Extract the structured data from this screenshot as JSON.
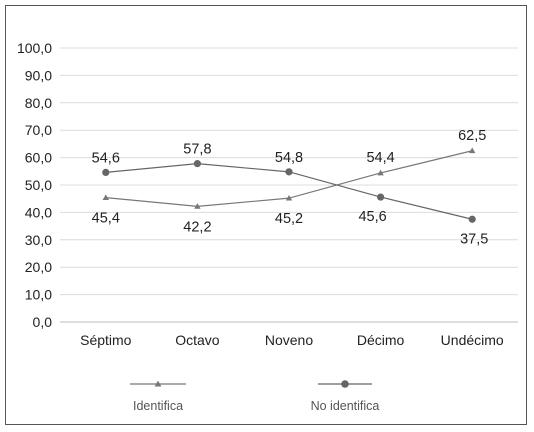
{
  "chart_data": {
    "type": "line",
    "categories": [
      "Séptimo",
      "Octavo",
      "Noveno",
      "Décimo",
      "Undécimo"
    ],
    "ylim": [
      0,
      100
    ],
    "yticks": [
      "0,0",
      "10,0",
      "20,0",
      "30,0",
      "40,0",
      "50,0",
      "60,0",
      "70,0",
      "80,0",
      "90,0",
      "100,0"
    ],
    "grid": true,
    "legend_position": "bottom",
    "series": [
      {
        "name": "Identifica",
        "values": [
          45.4,
          42.2,
          45.2,
          54.4,
          62.5
        ],
        "labels": [
          "45,4",
          "42,2",
          "45,2",
          "54,4",
          "62,5"
        ],
        "marker": "triangle",
        "color": "#777777"
      },
      {
        "name": "No identifica",
        "values": [
          54.6,
          57.8,
          54.8,
          45.6,
          37.5
        ],
        "labels": [
          "54,6",
          "57,8",
          "54,8",
          "45,6",
          "37,5"
        ],
        "marker": "circle",
        "color": "#666666"
      }
    ]
  }
}
